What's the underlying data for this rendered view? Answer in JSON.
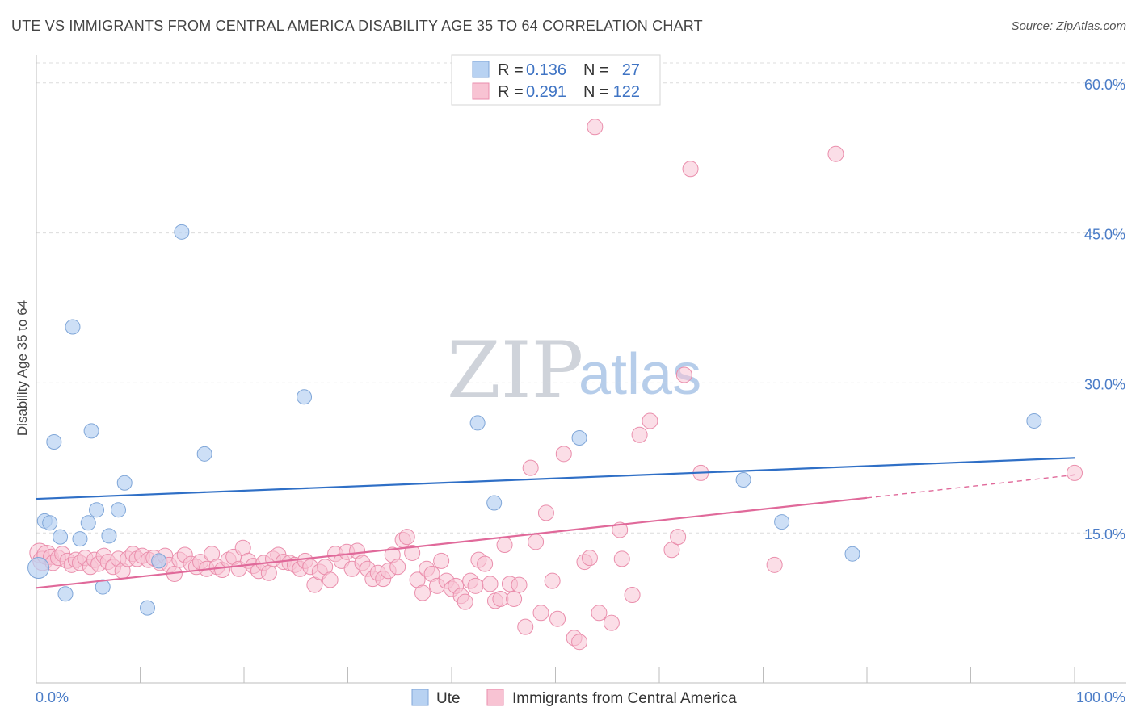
{
  "header": {
    "title": "UTE VS IMMIGRANTS FROM CENTRAL AMERICA DISABILITY AGE 35 TO 64 CORRELATION CHART",
    "source": "Source: ZipAtlas.com"
  },
  "watermark": {
    "zip": "ZIP",
    "atlas": "atlas"
  },
  "colors": {
    "ute_fill": "#b8d2f2",
    "ute_stroke": "#7fa6d8",
    "ute_line": "#2f6fc6",
    "imm_fill": "#f8c3d3",
    "imm_stroke": "#ea8eac",
    "imm_line": "#e0699a",
    "grid": "#dcdcdc",
    "axis_text": "#4a7cc7"
  },
  "legend": {
    "rows": [
      {
        "r_label": "R =",
        "r_value": "0.136",
        "n_label": "N =",
        "n_value": "27"
      },
      {
        "r_label": "R =",
        "r_value": "0.291",
        "n_label": "N =",
        "n_value": "122"
      }
    ]
  },
  "bottom_legend": {
    "ute": "Ute",
    "imm": "Immigrants from Central America"
  },
  "chart_data": {
    "type": "scatter",
    "title": "UTE VS IMMIGRANTS FROM CENTRAL AMERICA DISABILITY AGE 35 TO 64 CORRELATION CHART",
    "xlabel": "",
    "ylabel": "Disability Age 35 to 64",
    "xlim": [
      0,
      100
    ],
    "ylim": [
      0,
      62
    ],
    "x_tick_labels": [
      "0.0%",
      "100.0%"
    ],
    "y_ticks": [
      15,
      30,
      45,
      60
    ],
    "y_tick_labels": [
      "15.0%",
      "30.0%",
      "45.0%",
      "60.0%"
    ],
    "grid": true,
    "series": [
      {
        "name": "Ute",
        "r": 0.136,
        "n": 27,
        "trend": {
          "x": [
            0,
            100
          ],
          "y": [
            18.4,
            22.5
          ]
        },
        "points": [
          [
            0.2,
            11.5
          ],
          [
            0.8,
            16.2
          ],
          [
            1.3,
            16.0
          ],
          [
            1.7,
            24.1
          ],
          [
            2.3,
            14.6
          ],
          [
            2.8,
            8.9
          ],
          [
            3.5,
            35.6
          ],
          [
            4.2,
            14.4
          ],
          [
            5.0,
            16.0
          ],
          [
            5.3,
            25.2
          ],
          [
            5.8,
            17.3
          ],
          [
            6.4,
            9.6
          ],
          [
            7.0,
            14.7
          ],
          [
            7.9,
            17.3
          ],
          [
            8.5,
            20.0
          ],
          [
            10.7,
            7.5
          ],
          [
            11.8,
            12.2
          ],
          [
            14.0,
            45.1
          ],
          [
            16.2,
            22.9
          ],
          [
            25.8,
            28.6
          ],
          [
            42.5,
            26.0
          ],
          [
            44.1,
            18.0
          ],
          [
            52.3,
            24.5
          ],
          [
            68.1,
            20.3
          ],
          [
            71.8,
            16.1
          ],
          [
            78.6,
            12.9
          ],
          [
            96.1,
            26.2
          ]
        ]
      },
      {
        "name": "Immigrants from Central America",
        "r": 0.291,
        "n": 122,
        "trend": {
          "x": [
            0,
            80
          ],
          "y": [
            9.5,
            18.5
          ]
        },
        "trend_extension": {
          "x": [
            80,
            100
          ],
          "y": [
            18.5,
            20.8
          ]
        },
        "points": [
          [
            0.3,
            13.0
          ],
          [
            0.6,
            12.2
          ],
          [
            1.0,
            12.8
          ],
          [
            1.4,
            12.6
          ],
          [
            1.6,
            12.0
          ],
          [
            2.1,
            12.5
          ],
          [
            2.5,
            12.9
          ],
          [
            3.0,
            12.2
          ],
          [
            3.4,
            11.8
          ],
          [
            3.8,
            12.3
          ],
          [
            4.2,
            12.0
          ],
          [
            4.7,
            12.5
          ],
          [
            5.2,
            11.6
          ],
          [
            5.6,
            12.3
          ],
          [
            6.0,
            11.9
          ],
          [
            6.5,
            12.7
          ],
          [
            6.9,
            12.1
          ],
          [
            7.4,
            11.6
          ],
          [
            7.9,
            12.4
          ],
          [
            8.3,
            11.2
          ],
          [
            8.8,
            12.4
          ],
          [
            9.3,
            12.9
          ],
          [
            9.7,
            12.4
          ],
          [
            10.2,
            12.7
          ],
          [
            10.8,
            12.3
          ],
          [
            11.3,
            12.5
          ],
          [
            11.9,
            12.0
          ],
          [
            12.4,
            12.7
          ],
          [
            12.8,
            11.8
          ],
          [
            13.3,
            10.9
          ],
          [
            13.8,
            12.3
          ],
          [
            14.3,
            12.8
          ],
          [
            14.9,
            11.9
          ],
          [
            15.4,
            11.6
          ],
          [
            15.8,
            12.1
          ],
          [
            16.4,
            11.4
          ],
          [
            16.9,
            12.9
          ],
          [
            17.4,
            11.6
          ],
          [
            17.9,
            11.3
          ],
          [
            18.5,
            12.3
          ],
          [
            19.0,
            12.6
          ],
          [
            19.5,
            11.4
          ],
          [
            19.9,
            13.5
          ],
          [
            20.4,
            12.2
          ],
          [
            20.9,
            11.7
          ],
          [
            21.4,
            11.2
          ],
          [
            21.9,
            12.0
          ],
          [
            22.4,
            11.0
          ],
          [
            22.8,
            12.4
          ],
          [
            23.3,
            12.8
          ],
          [
            23.8,
            12.1
          ],
          [
            24.4,
            12.0
          ],
          [
            24.9,
            11.8
          ],
          [
            25.4,
            11.4
          ],
          [
            25.9,
            12.2
          ],
          [
            26.4,
            11.6
          ],
          [
            26.8,
            9.8
          ],
          [
            27.3,
            11.1
          ],
          [
            27.8,
            11.6
          ],
          [
            28.3,
            10.3
          ],
          [
            28.8,
            12.9
          ],
          [
            29.4,
            12.2
          ],
          [
            29.9,
            13.1
          ],
          [
            30.4,
            11.4
          ],
          [
            30.9,
            13.2
          ],
          [
            31.4,
            12.0
          ],
          [
            31.9,
            11.4
          ],
          [
            32.4,
            10.4
          ],
          [
            32.9,
            11.0
          ],
          [
            33.4,
            10.4
          ],
          [
            33.9,
            11.2
          ],
          [
            34.3,
            12.8
          ],
          [
            34.8,
            11.6
          ],
          [
            35.3,
            14.3
          ],
          [
            35.7,
            14.6
          ],
          [
            36.2,
            13.0
          ],
          [
            36.7,
            10.3
          ],
          [
            37.2,
            9.0
          ],
          [
            37.6,
            11.4
          ],
          [
            38.1,
            10.9
          ],
          [
            38.6,
            9.7
          ],
          [
            39.0,
            12.2
          ],
          [
            39.5,
            10.2
          ],
          [
            40.0,
            9.4
          ],
          [
            40.4,
            9.7
          ],
          [
            40.9,
            8.7
          ],
          [
            41.3,
            8.1
          ],
          [
            41.8,
            10.2
          ],
          [
            42.3,
            9.7
          ],
          [
            42.6,
            12.3
          ],
          [
            43.2,
            11.9
          ],
          [
            43.7,
            9.9
          ],
          [
            44.2,
            8.2
          ],
          [
            44.7,
            8.4
          ],
          [
            45.1,
            13.8
          ],
          [
            45.6,
            9.9
          ],
          [
            46.0,
            8.4
          ],
          [
            46.5,
            9.8
          ],
          [
            47.1,
            5.6
          ],
          [
            47.6,
            21.5
          ],
          [
            48.1,
            14.1
          ],
          [
            48.6,
            7.0
          ],
          [
            49.1,
            17.0
          ],
          [
            49.7,
            10.2
          ],
          [
            50.2,
            6.4
          ],
          [
            50.8,
            22.9
          ],
          [
            51.8,
            4.5
          ],
          [
            52.3,
            4.1
          ],
          [
            52.8,
            12.1
          ],
          [
            53.3,
            12.5
          ],
          [
            53.8,
            55.6
          ],
          [
            54.2,
            7.0
          ],
          [
            55.4,
            6.0
          ],
          [
            56.2,
            15.3
          ],
          [
            56.4,
            12.4
          ],
          [
            57.4,
            8.8
          ],
          [
            58.1,
            24.8
          ],
          [
            59.1,
            26.2
          ],
          [
            61.2,
            13.3
          ],
          [
            61.8,
            14.6
          ],
          [
            62.4,
            30.8
          ],
          [
            63.0,
            51.4
          ],
          [
            64.0,
            21.0
          ],
          [
            71.1,
            11.8
          ],
          [
            77.0,
            52.9
          ],
          [
            100.0,
            21.0
          ]
        ]
      }
    ]
  }
}
